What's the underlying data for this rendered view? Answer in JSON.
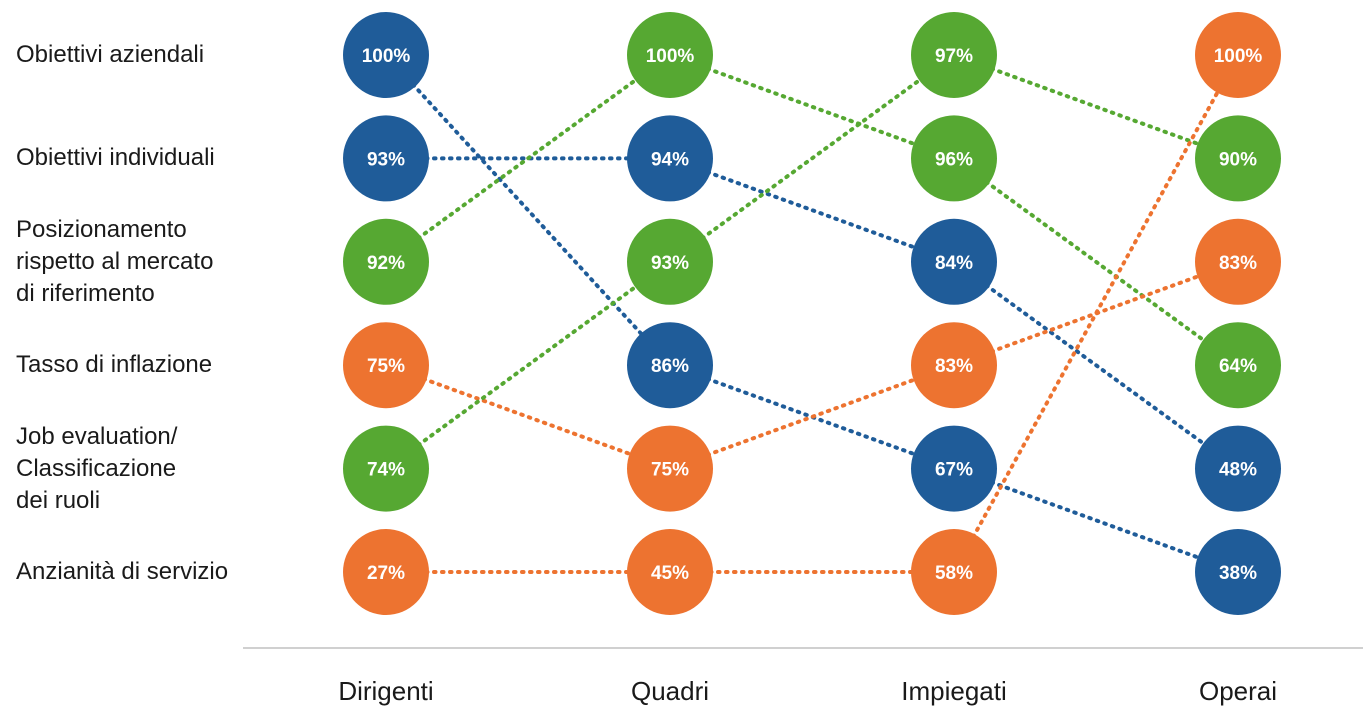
{
  "chart_data": {
    "type": "slope-ranking",
    "categories": [
      "Dirigenti",
      "Quadri",
      "Impiegati",
      "Operai"
    ],
    "factors": [
      "Obiettivi aziendali",
      "Obiettivi individuali",
      "Posizionamento\nrispetto al mercato\ndi riferimento",
      "Tasso di inflazione",
      "Job evaluation/\nClassificazione\ndei ruoli",
      "Anzianità di servizio"
    ],
    "colors": [
      "#1f5c99",
      "#56a832",
      "#ed7330"
    ],
    "columns": [
      {
        "category": "Dirigenti",
        "cells": [
          {
            "factor": 0,
            "label": "100%",
            "value": 100,
            "color": 0
          },
          {
            "factor": 1,
            "label": "93%",
            "value": 93,
            "color": 0
          },
          {
            "factor": 2,
            "label": "92%",
            "value": 92,
            "color": 1
          },
          {
            "factor": 3,
            "label": "75%",
            "value": 75,
            "color": 2
          },
          {
            "factor": 4,
            "label": "74%",
            "value": 74,
            "color": 1
          },
          {
            "factor": 5,
            "label": "27%",
            "value": 27,
            "color": 2
          }
        ]
      },
      {
        "category": "Quadri",
        "cells": [
          {
            "factor": 2,
            "label": "100%",
            "value": 100,
            "color": 1
          },
          {
            "factor": 1,
            "label": "94%",
            "value": 94,
            "color": 0
          },
          {
            "factor": 4,
            "label": "93%",
            "value": 93,
            "color": 1
          },
          {
            "factor": 0,
            "label": "86%",
            "value": 86,
            "color": 0
          },
          {
            "factor": 3,
            "label": "75%",
            "value": 75,
            "color": 2
          },
          {
            "factor": 5,
            "label": "45%",
            "value": 45,
            "color": 2
          }
        ]
      },
      {
        "category": "Impiegati",
        "cells": [
          {
            "factor": 4,
            "label": "97%",
            "value": 97,
            "color": 1
          },
          {
            "factor": 2,
            "label": "96%",
            "value": 96,
            "color": 1
          },
          {
            "factor": 1,
            "label": "84%",
            "value": 84,
            "color": 0
          },
          {
            "factor": 3,
            "label": "83%",
            "value": 83,
            "color": 2
          },
          {
            "factor": 0,
            "label": "67%",
            "value": 67,
            "color": 0
          },
          {
            "factor": 5,
            "label": "58%",
            "value": 58,
            "color": 2
          }
        ]
      },
      {
        "category": "Operai",
        "cells": [
          {
            "factor": 5,
            "label": "100%",
            "value": 100,
            "color": 2
          },
          {
            "factor": 4,
            "label": "90%",
            "value": 90,
            "color": 1
          },
          {
            "factor": 3,
            "label": "83%",
            "value": 83,
            "color": 2
          },
          {
            "factor": 2,
            "label": "64%",
            "value": 64,
            "color": 1
          },
          {
            "factor": 1,
            "label": "48%",
            "value": 48,
            "color": 0
          },
          {
            "factor": 0,
            "label": "38%",
            "value": 38,
            "color": 0
          }
        ]
      }
    ]
  }
}
